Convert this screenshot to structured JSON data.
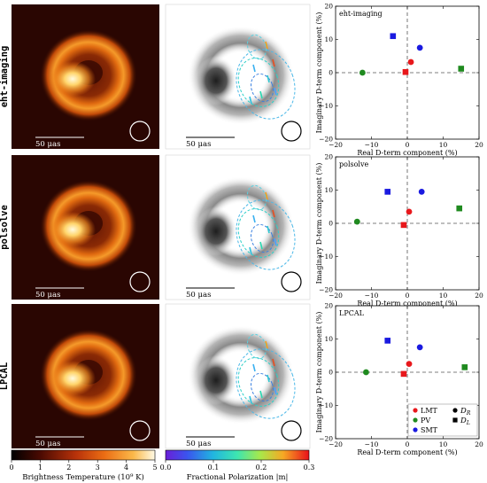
{
  "rows": [
    {
      "method": "eht-imaging",
      "scalebar": "50 μas",
      "chart": {
        "annotation": "eht-imaging",
        "points": [
          {
            "station": "LMT",
            "type": "R",
            "x": 1,
            "y": 3.2
          },
          {
            "station": "LMT",
            "type": "L",
            "x": -0.5,
            "y": 0.2
          },
          {
            "station": "PV",
            "type": "R",
            "x": -12.5,
            "y": 0
          },
          {
            "station": "PV",
            "type": "L",
            "x": 15,
            "y": 1.2
          },
          {
            "station": "SMT",
            "type": "R",
            "x": 3.5,
            "y": 7.5
          },
          {
            "station": "SMT",
            "type": "L",
            "x": -4,
            "y": 11
          }
        ]
      }
    },
    {
      "method": "polsolve",
      "scalebar": "50 μas",
      "chart": {
        "annotation": "polsolve",
        "points": [
          {
            "station": "LMT",
            "type": "R",
            "x": 0.5,
            "y": 3.5
          },
          {
            "station": "LMT",
            "type": "L",
            "x": -1,
            "y": -0.5
          },
          {
            "station": "PV",
            "type": "R",
            "x": -14,
            "y": 0.5
          },
          {
            "station": "PV",
            "type": "L",
            "x": 14.5,
            "y": 4.5
          },
          {
            "station": "SMT",
            "type": "R",
            "x": 4,
            "y": 9.5
          },
          {
            "station": "SMT",
            "type": "L",
            "x": -5.5,
            "y": 9.5
          }
        ]
      }
    },
    {
      "method": "LPCAL",
      "scalebar": "50 μas",
      "chart": {
        "annotation": "LPCAL",
        "points": [
          {
            "station": "LMT",
            "type": "R",
            "x": 0.5,
            "y": 2.5
          },
          {
            "station": "LMT",
            "type": "L",
            "x": -1,
            "y": -0.5
          },
          {
            "station": "PV",
            "type": "R",
            "x": -11.5,
            "y": 0
          },
          {
            "station": "PV",
            "type": "L",
            "x": 16,
            "y": 1.5
          },
          {
            "station": "SMT",
            "type": "R",
            "x": 3.5,
            "y": 7.5
          },
          {
            "station": "SMT",
            "type": "L",
            "x": -5.5,
            "y": 9.5
          }
        ]
      }
    }
  ],
  "chart_data": {
    "type": "scatter",
    "xlabel": "Real D-term component (%)",
    "ylabel": "Imaginary D-term component (%)",
    "xlim": [
      -20,
      20
    ],
    "ylim": [
      -20,
      20
    ],
    "ticks": [
      "−20",
      "−10",
      "0",
      "10",
      "20"
    ],
    "tick_values": [
      -20,
      -10,
      0,
      10,
      20
    ]
  },
  "legend": {
    "stations": [
      {
        "name": "LMT",
        "color": "#e8181c"
      },
      {
        "name": "PV",
        "color": "#1f8a1f"
      },
      {
        "name": "SMT",
        "color": "#1a1ae0"
      }
    ],
    "types": [
      {
        "name": "D_R",
        "main": "D",
        "sub": "R",
        "marker": "circle"
      },
      {
        "name": "D_L",
        "main": "D",
        "sub": "L",
        "marker": "square"
      }
    ]
  },
  "colorbars": [
    {
      "label": "Brightness Temperature (10⁹ K)",
      "ticks": [
        "0",
        "1",
        "2",
        "3",
        "4",
        "5"
      ],
      "tick_values": [
        0,
        1,
        2,
        3,
        4,
        5
      ],
      "range": [
        0,
        5
      ]
    },
    {
      "label": "Fractional Polarization |m|",
      "ticks": [
        "0.0",
        "0.1",
        "0.2",
        "0.3"
      ],
      "tick_values": [
        0,
        0.1,
        0.2,
        0.3
      ],
      "range": [
        0,
        0.3
      ]
    }
  ]
}
